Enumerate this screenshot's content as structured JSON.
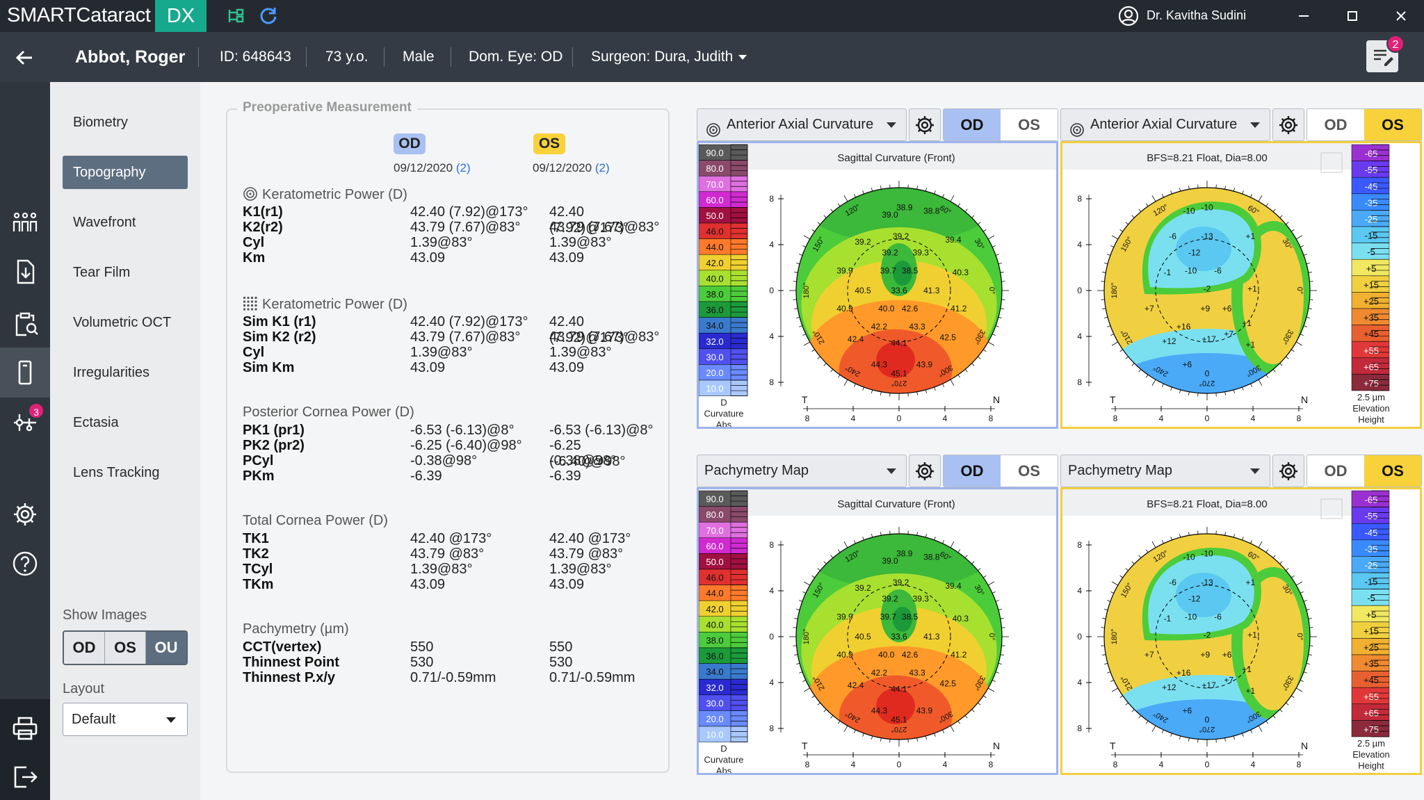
{
  "app": {
    "name": "SMARTCataract",
    "badge": "DX",
    "user": "Dr. Kavitha Sudini"
  },
  "patient": {
    "name": "Abbot, Roger",
    "id": "ID: 648643",
    "age": "73 y.o.",
    "sex": "Male",
    "dom_eye": "Dom. Eye: OD",
    "surgeon": "Surgeon: Dura, Judith"
  },
  "notes": {
    "badge": "2"
  },
  "nav_badge": "3",
  "menu": [
    "Biometry",
    "Topography",
    "Wavefront",
    "Tear Film",
    "Volumetric OCT",
    "Irregularities",
    "Ectasia",
    "Lens Tracking"
  ],
  "menu_active": "Topography",
  "show_images": {
    "label": "Show Images",
    "options": [
      "OD",
      "OS",
      "OU"
    ],
    "selected": "OU"
  },
  "layout": {
    "label": "Layout",
    "value": "Default"
  },
  "measurement": {
    "title": "Preoperative Measurement",
    "od": {
      "eye": "OD",
      "date": "09/12/2020",
      "count": "(2)",
      "color": "#a9c1f2"
    },
    "os": {
      "eye": "OS",
      "date": "09/12/2020",
      "count": "(2)",
      "color": "#f7d23a"
    },
    "sections": [
      {
        "title": "Keratometric Power (D)",
        "rows": [
          [
            "K1(r1)",
            "42.40 (7.92)@173°",
            "42.40 (7.92)@173°"
          ],
          [
            "K2(r2)",
            "43.79 (7.67)@83°",
            "43.79 (7.67)@83°"
          ],
          [
            "Cyl",
            "1.39@83°",
            "1.39@83°"
          ],
          [
            "Km",
            "43.09",
            "43.09"
          ]
        ]
      },
      {
        "title": "Keratometric Power (D)",
        "rows": [
          [
            "Sim K1 (r1)",
            "42.40 (7.92)@173°",
            "42.40 (7.92)@173°"
          ],
          [
            "Sim K2 (r2)",
            "43.79 (7.67)@83°",
            "43.79 (7.67)@83°"
          ],
          [
            "Cyl",
            "1.39@83°",
            "1.39@83°"
          ],
          [
            "Sim Km",
            "43.09",
            "43.09"
          ]
        ]
      },
      {
        "title": "Posterior Cornea Power (D)",
        "rows": [
          [
            "PK1 (pr1)",
            "-6.53 (-6.13)@8°",
            "-6.53 (-6.13)@8°"
          ],
          [
            "PK2 (pr2)",
            "-6.25 (-6.40)@98°",
            "-6.25 (-6.40)@98°"
          ],
          [
            "PCyl",
            "-0.38@98°",
            "-0.38@98°"
          ],
          [
            "PKm",
            "-6.39",
            "-6.39"
          ]
        ]
      },
      {
        "title": "Total Cornea Power (D)",
        "rows": [
          [
            "TK1",
            "42.40 @173°",
            "42.40 @173°"
          ],
          [
            "TK2",
            "43.79 @83°",
            "43.79 @83°"
          ],
          [
            "TCyl",
            "1.39@83°",
            "1.39@83°"
          ],
          [
            "TKm",
            "43.09",
            "43.09"
          ]
        ]
      },
      {
        "title": "Pachymetry (µm)",
        "rows": [
          [
            "CCT(vertex)",
            "550",
            "550"
          ],
          [
            "Thinnest Point",
            "530",
            "530"
          ],
          [
            "Thinnest P.x/y",
            "0.71/-0.59mm",
            "0.71/-0.59mm"
          ]
        ]
      }
    ]
  },
  "maps": [
    {
      "map_type": "Anterior Axial Curvature",
      "eye_selected": "OD",
      "subtitle": "Sagittal Curvature (Front)",
      "kind": "curv",
      "scale_footer": [
        "D",
        "Curvature",
        "Abs"
      ]
    },
    {
      "map_type": "Anterior Axial Curvature",
      "eye_selected": "OS",
      "subtitle": "BFS=8.21 Float, Dia=8.00",
      "kind": "elev",
      "scale_footer": [
        "2.5 µm",
        "Elevation",
        "Height"
      ]
    },
    {
      "map_type": "Pachymetry Map",
      "eye_selected": "OD",
      "subtitle": "Sagittal Curvature (Front)",
      "kind": "curv",
      "scale_footer": [
        "D",
        "Curvature",
        "Abs"
      ]
    },
    {
      "map_type": "Pachymetry Map",
      "eye_selected": "OS",
      "subtitle": "BFS=8.21 Float, Dia=8.00",
      "kind": "elev",
      "scale_footer": [
        "2.5 µm",
        "Elevation",
        "Height"
      ]
    }
  ],
  "eye_options": [
    "OD",
    "OS"
  ],
  "curv_scale": {
    "values": [
      "90.0",
      "80.0",
      "70.0",
      "60.0",
      "50.0",
      "46.0",
      "44.0",
      "42.0",
      "40.0",
      "38.0",
      "36.0",
      "34.0",
      "32.0",
      "30.0",
      "20.0",
      "10.0"
    ],
    "colors": [
      "#5a5a5a",
      "#8a4a6a",
      "#e070e0",
      "#d02ad0",
      "#a01040",
      "#e03030",
      "#ff7a2a",
      "#f0d030",
      "#a8e030",
      "#4ccc3a",
      "#1c9a3a",
      "#3a7acc",
      "#2a2ad0",
      "#5050ee",
      "#6a8aff",
      "#a8c8ff"
    ]
  },
  "elev_scale": {
    "values": [
      "-65",
      "-55",
      "-45",
      "-35",
      "-25",
      "-15",
      "-5",
      "+5",
      "+15",
      "+25",
      "+35",
      "+45",
      "+55",
      "+65",
      "+75"
    ],
    "colors": [
      "#9a30d0",
      "#6a3aee",
      "#3a5aff",
      "#3a8aff",
      "#4aaaf8",
      "#5ac8f0",
      "#7ae0f0",
      "#f0e860",
      "#f0d040",
      "#f0b030",
      "#f08a30",
      "#e86030",
      "#e03838",
      "#c02a3a",
      "#8a2a3a"
    ]
  },
  "curv_values": [
    [
      "39.0",
      -5,
      -42
    ],
    [
      "38.9",
      3,
      -46
    ],
    [
      "38.8",
      18,
      -44
    ],
    [
      "39.2",
      -20,
      -27
    ],
    [
      "39.2",
      1,
      -30
    ],
    [
      "39.4",
      30,
      -28
    ],
    [
      "39.2",
      -5,
      -21
    ],
    [
      "39.3",
      12,
      -21
    ],
    [
      "39.9",
      -30,
      -11
    ],
    [
      "39.7",
      -6,
      -11
    ],
    [
      "38.5",
      6,
      -11
    ],
    [
      "40.3",
      34,
      -10
    ],
    [
      "40.5",
      -20,
      0
    ],
    [
      "33.6",
      0,
      0
    ],
    [
      "41.3",
      18,
      0
    ],
    [
      "40.9",
      -30,
      10
    ],
    [
      "40.0",
      -7,
      10
    ],
    [
      "42.6",
      6,
      10
    ],
    [
      "41.2",
      33,
      10
    ],
    [
      "42.2",
      -11,
      20
    ],
    [
      "43.3",
      10,
      20
    ],
    [
      "42.5",
      27,
      26
    ],
    [
      "42.4",
      -24,
      27
    ],
    [
      "44.1",
      0,
      29
    ],
    [
      "44.3",
      -11,
      41
    ],
    [
      "43.9",
      14,
      41
    ],
    [
      "45.1",
      0,
      46
    ]
  ],
  "elev_values": [
    [
      "-10",
      -10,
      -44
    ],
    [
      "-10",
      0,
      -46
    ],
    [
      "-6",
      -19,
      -30
    ],
    [
      "-13",
      0,
      -30
    ],
    [
      "-12",
      -7,
      -21
    ],
    [
      "+1",
      24,
      -30
    ],
    [
      "-1",
      -22,
      -10
    ],
    [
      "-10",
      -9,
      -11
    ],
    [
      "-6",
      6,
      -11
    ],
    [
      "-2",
      0,
      -1
    ],
    [
      "+1",
      25,
      -1
    ],
    [
      "+7",
      -32,
      10
    ],
    [
      "+9",
      -1,
      10
    ],
    [
      "+6",
      11,
      10
    ],
    [
      "+1",
      22,
      18
    ],
    [
      "+16",
      -13,
      20
    ],
    [
      "+17",
      1,
      27
    ],
    [
      "+7",
      12,
      24
    ],
    [
      "+12",
      -21,
      28
    ],
    [
      "+6",
      -11,
      41
    ],
    [
      "0",
      0,
      46
    ],
    [
      "+1",
      24,
      30
    ]
  ],
  "axis_ticks": [
    "8",
    "4",
    "0",
    "4",
    "8"
  ],
  "angle_labels": [
    "120°",
    "60°",
    "150°",
    "30°",
    "180°",
    "0°",
    "210°",
    "330°",
    "240°",
    "300°",
    "270°"
  ],
  "nasal_temporal": [
    "T",
    "N"
  ]
}
